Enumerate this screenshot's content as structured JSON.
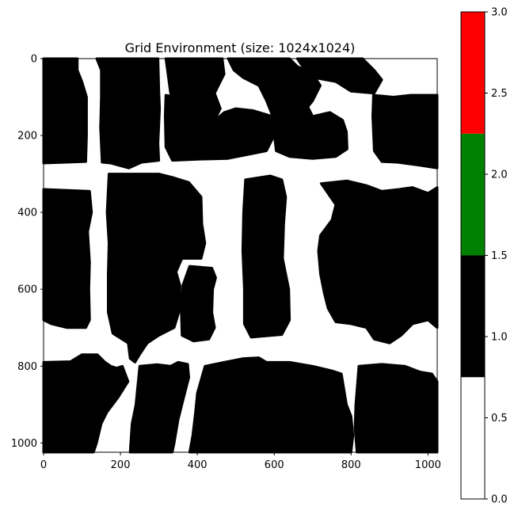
{
  "chart_data": {
    "type": "heatmap",
    "title": "Grid Environment (size: 1024x1024)",
    "xlabel": "",
    "ylabel": "",
    "xlim": [
      0,
      1024
    ],
    "ylim": [
      1024,
      0
    ],
    "x_ticks": [
      "0",
      "200",
      "400",
      "600",
      "800",
      "1000"
    ],
    "y_ticks": [
      "0",
      "200",
      "400",
      "600",
      "800",
      "1000"
    ],
    "colorbar": {
      "range": [
        0,
        3
      ],
      "ticks": [
        "0.0",
        "0.5",
        "1.0",
        "1.5",
        "2.0",
        "2.5",
        "3.0"
      ],
      "segments": [
        {
          "from": 0.0,
          "to": 0.75,
          "color": "#ffffff"
        },
        {
          "from": 0.75,
          "to": 1.5,
          "color": "#000000"
        },
        {
          "from": 1.5,
          "to": 2.25,
          "color": "#008000"
        },
        {
          "from": 2.25,
          "to": 3.0,
          "color": "#ff0000"
        }
      ]
    },
    "free_value": 0,
    "obstacle_value": 1,
    "obstacles": [
      {
        "name": "block-top-left",
        "points": [
          [
            0,
            0
          ],
          [
            88,
            0
          ],
          [
            88,
            30
          ],
          [
            100,
            60
          ],
          [
            112,
            100
          ],
          [
            112,
            200
          ],
          [
            110,
            268
          ],
          [
            0,
            272
          ]
        ]
      },
      {
        "name": "block-top-center-left",
        "points": [
          [
            138,
            0
          ],
          [
            298,
            0
          ],
          [
            300,
            80
          ],
          [
            302,
            130
          ],
          [
            298,
            220
          ],
          [
            300,
            265
          ],
          [
            255,
            270
          ],
          [
            222,
            285
          ],
          [
            175,
            272
          ],
          [
            152,
            270
          ],
          [
            148,
            180
          ],
          [
            150,
            100
          ],
          [
            150,
            30
          ]
        ]
      },
      {
        "name": "block-top-center",
        "points": [
          [
            318,
            0
          ],
          [
            465,
            0
          ],
          [
            470,
            40
          ],
          [
            445,
            90
          ],
          [
            460,
            130
          ],
          [
            445,
            160
          ],
          [
            395,
            170
          ],
          [
            375,
            130
          ],
          [
            345,
            125
          ],
          [
            330,
            90
          ],
          [
            322,
            30
          ]
        ]
      },
      {
        "name": "block-top-small",
        "points": [
          [
            385,
            0
          ],
          [
            465,
            0
          ],
          [
            462,
            15
          ],
          [
            420,
            20
          ],
          [
            390,
            10
          ]
        ]
      },
      {
        "name": "block-top-right-a",
        "points": [
          [
            480,
            0
          ],
          [
            640,
            0
          ],
          [
            660,
            20
          ],
          [
            700,
            40
          ],
          [
            720,
            70
          ],
          [
            700,
            110
          ],
          [
            660,
            160
          ],
          [
            620,
            175
          ],
          [
            600,
            160
          ],
          [
            580,
            110
          ],
          [
            560,
            70
          ],
          [
            520,
            50
          ],
          [
            495,
            30
          ]
        ]
      },
      {
        "name": "block-top-middle",
        "points": [
          [
            318,
            95
          ],
          [
            368,
            105
          ],
          [
            378,
            135
          ],
          [
            395,
            160
          ],
          [
            440,
            165
          ],
          [
            470,
            140
          ],
          [
            500,
            130
          ],
          [
            545,
            135
          ],
          [
            595,
            150
          ],
          [
            600,
            200
          ],
          [
            580,
            240
          ],
          [
            480,
            260
          ],
          [
            400,
            262
          ],
          [
            335,
            265
          ],
          [
            318,
            230
          ],
          [
            316,
            150
          ]
        ]
      },
      {
        "name": "block-top-right",
        "points": [
          [
            590,
            100
          ],
          [
            625,
            95
          ],
          [
            660,
            85
          ],
          [
            680,
            110
          ],
          [
            700,
            150
          ],
          [
            745,
            140
          ],
          [
            778,
            160
          ],
          [
            788,
            190
          ],
          [
            790,
            235
          ],
          [
            760,
            255
          ],
          [
            700,
            260
          ],
          [
            640,
            255
          ],
          [
            605,
            240
          ],
          [
            598,
            180
          ]
        ]
      },
      {
        "name": "block-top-far-right",
        "points": [
          [
            858,
            95
          ],
          [
            910,
            100
          ],
          [
            955,
            95
          ],
          [
            1024,
            95
          ],
          [
            1024,
            285
          ],
          [
            980,
            278
          ],
          [
            920,
            270
          ],
          [
            880,
            268
          ],
          [
            860,
            240
          ],
          [
            856,
            150
          ]
        ]
      },
      {
        "name": "block-top-right-upper",
        "points": [
          [
            660,
            0
          ],
          [
            830,
            0
          ],
          [
            860,
            30
          ],
          [
            880,
            55
          ],
          [
            860,
            90
          ],
          [
            800,
            85
          ],
          [
            760,
            60
          ],
          [
            705,
            50
          ],
          [
            680,
            30
          ]
        ]
      },
      {
        "name": "block-left-middle",
        "points": [
          [
            0,
            340
          ],
          [
            120,
            345
          ],
          [
            125,
            400
          ],
          [
            115,
            450
          ],
          [
            120,
            530
          ],
          [
            118,
            600
          ],
          [
            120,
            680
          ],
          [
            110,
            700
          ],
          [
            60,
            700
          ],
          [
            20,
            690
          ],
          [
            0,
            680
          ]
        ]
      },
      {
        "name": "block-center-left",
        "points": [
          [
            170,
            300
          ],
          [
            300,
            300
          ],
          [
            340,
            310
          ],
          [
            378,
            322
          ],
          [
            410,
            360
          ],
          [
            412,
            430
          ],
          [
            420,
            480
          ],
          [
            410,
            520
          ],
          [
            360,
            520
          ],
          [
            345,
            555
          ],
          [
            355,
            590
          ],
          [
            355,
            650
          ],
          [
            340,
            700
          ],
          [
            300,
            720
          ],
          [
            270,
            740
          ],
          [
            250,
            770
          ],
          [
            238,
            790
          ],
          [
            225,
            780
          ],
          [
            220,
            740
          ],
          [
            180,
            715
          ],
          [
            168,
            660
          ],
          [
            168,
            560
          ],
          [
            170,
            480
          ],
          [
            165,
            400
          ]
        ]
      },
      {
        "name": "block-center-inner",
        "points": [
          [
            380,
            540
          ],
          [
            438,
            545
          ],
          [
            448,
            570
          ],
          [
            440,
            600
          ],
          [
            438,
            660
          ],
          [
            445,
            700
          ],
          [
            430,
            730
          ],
          [
            390,
            735
          ],
          [
            360,
            720
          ],
          [
            358,
            660
          ],
          [
            362,
            590
          ]
        ]
      },
      {
        "name": "block-center",
        "points": [
          [
            525,
            315
          ],
          [
            590,
            305
          ],
          [
            620,
            315
          ],
          [
            630,
            360
          ],
          [
            625,
            430
          ],
          [
            622,
            520
          ],
          [
            638,
            600
          ],
          [
            640,
            680
          ],
          [
            620,
            718
          ],
          [
            540,
            725
          ],
          [
            522,
            690
          ],
          [
            522,
            600
          ],
          [
            518,
            500
          ],
          [
            520,
            400
          ]
        ]
      },
      {
        "name": "block-center-right",
        "points": [
          [
            722,
            325
          ],
          [
            790,
            318
          ],
          [
            840,
            330
          ],
          [
            880,
            345
          ],
          [
            925,
            340
          ],
          [
            960,
            335
          ],
          [
            1000,
            350
          ],
          [
            1024,
            335
          ],
          [
            1024,
            700
          ],
          [
            1000,
            680
          ],
          [
            960,
            690
          ],
          [
            930,
            720
          ],
          [
            900,
            740
          ],
          [
            860,
            730
          ],
          [
            840,
            700
          ],
          [
            800,
            690
          ],
          [
            760,
            685
          ],
          [
            740,
            650
          ],
          [
            730,
            610
          ],
          [
            720,
            560
          ],
          [
            715,
            500
          ],
          [
            720,
            460
          ],
          [
            750,
            420
          ],
          [
            760,
            380
          ]
        ]
      },
      {
        "name": "block-bottom-left",
        "points": [
          [
            0,
            790
          ],
          [
            70,
            788
          ],
          [
            100,
            770
          ],
          [
            140,
            770
          ],
          [
            160,
            790
          ],
          [
            175,
            800
          ],
          [
            190,
            805
          ],
          [
            205,
            800
          ],
          [
            220,
            840
          ],
          [
            195,
            880
          ],
          [
            165,
            920
          ],
          [
            150,
            950
          ],
          [
            138,
            1000
          ],
          [
            130,
            1024
          ],
          [
            0,
            1024
          ]
        ]
      },
      {
        "name": "block-bottom-center-left",
        "points": [
          [
            250,
            800
          ],
          [
            295,
            796
          ],
          [
            330,
            800
          ],
          [
            350,
            790
          ],
          [
            375,
            795
          ],
          [
            378,
            830
          ],
          [
            365,
            880
          ],
          [
            350,
            940
          ],
          [
            340,
            1000
          ],
          [
            335,
            1024
          ],
          [
            225,
            1024
          ],
          [
            230,
            950
          ],
          [
            240,
            900
          ],
          [
            245,
            850
          ]
        ]
      },
      {
        "name": "block-bottom-center",
        "points": [
          [
            420,
            800
          ],
          [
            470,
            790
          ],
          [
            520,
            780
          ],
          [
            560,
            778
          ],
          [
            580,
            790
          ],
          [
            640,
            790
          ],
          [
            700,
            800
          ],
          [
            750,
            812
          ],
          [
            775,
            820
          ],
          [
            788,
            900
          ],
          [
            800,
            930
          ],
          [
            805,
            980
          ],
          [
            800,
            1024
          ],
          [
            380,
            1024
          ],
          [
            388,
            980
          ],
          [
            395,
            920
          ],
          [
            400,
            870
          ]
        ]
      },
      {
        "name": "block-bottom-right",
        "points": [
          [
            820,
            800
          ],
          [
            880,
            795
          ],
          [
            940,
            800
          ],
          [
            980,
            815
          ],
          [
            1010,
            820
          ],
          [
            1024,
            840
          ],
          [
            1024,
            1024
          ],
          [
            815,
            1024
          ],
          [
            810,
            960
          ],
          [
            812,
            900
          ]
        ]
      }
    ]
  }
}
